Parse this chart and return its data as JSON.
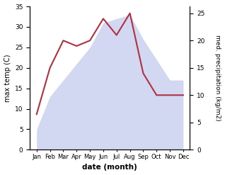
{
  "months": [
    "Jan",
    "Feb",
    "Mar",
    "Apr",
    "May",
    "Jun",
    "Jul",
    "Aug",
    "Sep",
    "Oct",
    "Nov",
    "Dec"
  ],
  "temp": [
    5,
    13,
    17,
    21,
    25,
    31,
    32,
    33,
    27,
    22,
    17,
    17
  ],
  "precip": [
    6.5,
    15,
    20,
    19,
    20,
    24,
    21,
    25,
    14,
    10,
    10,
    10
  ],
  "temp_ylim": [
    0,
    35
  ],
  "precip_ylim": [
    0,
    26.25
  ],
  "area_color": "#b0b8e8",
  "area_alpha": 0.55,
  "line_color": "#b03040",
  "ylabel_left": "max temp (C)",
  "ylabel_right": "med. precipitation (kg/m2)",
  "xlabel": "date (month)",
  "left_ticks": [
    0,
    5,
    10,
    15,
    20,
    25,
    30,
    35
  ],
  "right_ticks": [
    0,
    5,
    10,
    15,
    20,
    25
  ],
  "figsize": [
    3.18,
    2.47
  ],
  "dpi": 100
}
